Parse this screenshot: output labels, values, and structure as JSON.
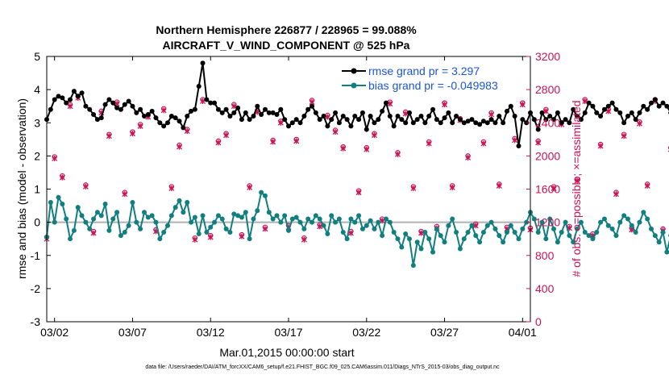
{
  "chart_data": {
    "type": "line",
    "title": "Northern Hemisphere 226877 / 228965 = 99.088%",
    "subtitle": "AIRCRAFT_V_WIND_COMPONENT @ 525 hPa",
    "xlabel": "Mar.01,2015 00:00:00 start",
    "ylabel_left": "rmse and bias (model - observation)",
    "ylabel_right": "# of obs: o=possible; ×=assimilated",
    "footer": "data file: /Users/raeder/DAI/ATM_forcXX/CAM6_setup/f.e21.FHIST_BGC.f09_025.CAM6assim.011/Diags_NTrS_2015-03/obs_diag_output.nc",
    "x_range": [
      0.5,
      31.5
    ],
    "ylim_left": [
      -3,
      5
    ],
    "ylim_right": [
      0,
      3200
    ],
    "x_ticks": [
      {
        "value": 1.0,
        "label": "03/02"
      },
      {
        "value": 6.0,
        "label": "03/07"
      },
      {
        "value": 11.0,
        "label": "03/12"
      },
      {
        "value": 16.0,
        "label": "03/17"
      },
      {
        "value": 21.0,
        "label": "03/22"
      },
      {
        "value": 26.0,
        "label": "03/27"
      },
      {
        "value": 31.0,
        "label": "04/01"
      }
    ],
    "y_ticks_left": [
      "-3",
      "-2",
      "-1",
      "0",
      "1",
      "2",
      "3",
      "4",
      "5"
    ],
    "y_ticks_right": [
      "0",
      "400",
      "800",
      "1200",
      "1600",
      "2000",
      "2400",
      "2800",
      "3200"
    ],
    "colors": {
      "rmse": "#000000",
      "bias": "#117f80",
      "obs": "#cc1155",
      "legend_text": "#1a55d8",
      "zero_line": "#b0b0b0"
    },
    "legend": [
      {
        "name": "rmse",
        "label": "rmse grand pr = 3.297"
      },
      {
        "name": "bias",
        "label": "bias grand pr = -0.049983"
      }
    ],
    "series": [
      {
        "name": "rmse",
        "x0": 0.5,
        "dx": 0.25,
        "values": [
          3.1,
          3.4,
          3.7,
          3.8,
          3.75,
          3.6,
          3.7,
          3.95,
          3.8,
          3.9,
          3.5,
          3.4,
          3.25,
          3.1,
          3.15,
          3.55,
          3.7,
          3.6,
          3.45,
          3.4,
          3.55,
          3.65,
          3.5,
          3.3,
          3.4,
          3.2,
          3.25,
          3.35,
          3.15,
          3.0,
          2.9,
          3.0,
          3.2,
          3.15,
          3.05,
          2.85,
          3.2,
          3.35,
          3.4,
          4.1,
          4.8,
          3.7,
          3.6,
          3.6,
          3.4,
          3.3,
          3.4,
          3.2,
          3.3,
          3.45,
          3.1,
          3.3,
          3.1,
          3.2,
          3.5,
          3.25,
          3.4,
          3.3,
          3.3,
          3.25,
          3.4,
          3.1,
          2.9,
          3.0,
          3.1,
          3.0,
          3.2,
          3.4,
          3.5,
          3.3,
          3.1,
          3.2,
          2.9,
          3.1,
          3.3,
          3.0,
          3.2,
          3.1,
          2.9,
          3.2,
          3.1,
          3.3,
          2.8,
          3.2,
          3.0,
          3.1,
          3.35,
          3.6,
          3.2,
          2.9,
          3.2,
          3.1,
          3.0,
          3.3,
          3.0,
          3.1,
          3.2,
          3.0,
          3.2,
          3.4,
          3.1,
          3.0,
          3.15,
          3.3,
          3.0,
          3.2,
          3.1,
          3.0,
          3.05,
          3.1,
          3.0,
          2.95,
          3.05,
          3.0,
          3.1,
          3.0,
          3.2,
          3.0,
          3.35,
          3.5,
          3.2,
          2.3,
          3.1,
          3.0,
          3.3,
          3.1,
          2.8,
          3.3,
          3.1,
          3.2,
          3.1,
          3.3,
          3.0,
          3.1,
          3.0,
          3.4,
          3.2,
          3.1,
          3.3,
          3.6,
          3.5,
          3.3,
          3.2,
          3.4,
          3.5,
          3.6,
          3.4,
          3.3,
          3.0,
          3.2,
          3.3,
          3.1,
          3.3,
          3.5,
          3.4,
          3.6,
          3.7,
          3.5,
          3.6,
          3.5,
          3.3,
          3.6,
          3.7,
          3.4,
          3.5,
          3.6,
          3.8,
          3.9,
          3.5,
          3.4,
          3.0,
          3.1,
          3.2,
          3.2,
          3.5,
          3.6,
          3.7,
          3.5,
          3.3,
          3.1,
          3.2,
          3.6,
          3.7
        ]
      },
      {
        "name": "bias",
        "x0": 0.5,
        "dx": 0.25,
        "values": [
          -0.45,
          0.6,
          0.0,
          0.75,
          0.55,
          0.1,
          -0.5,
          -0.25,
          0.45,
          0.2,
          0.0,
          -0.2,
          0.1,
          0.3,
          0.2,
          0.55,
          -0.25,
          0.1,
          0.3,
          -0.4,
          -0.3,
          -0.1,
          0.6,
          0.0,
          -0.2,
          0.3,
          0.15,
          0.2,
          0.0,
          -0.5,
          -0.3,
          -0.1,
          0.2,
          0.45,
          0.65,
          0.3,
          0.6,
          0.0,
          0.15,
          -0.35,
          0.2,
          -0.3,
          -0.15,
          0.0,
          0.2,
          0.1,
          -0.2,
          -0.3,
          0.25,
          0.2,
          0.15,
          0.3,
          -0.5,
          0.1,
          0.35,
          0.9,
          0.8,
          0.3,
          0.1,
          0.2,
          0.0,
          0.2,
          -0.25,
          0.1,
          0.15,
          0.0,
          -0.2,
          0.1,
          0.0,
          0.2,
          0.1,
          -0.1,
          -0.35,
          0.2,
          0.0,
          0.1,
          -0.3,
          -0.5,
          0.1,
          0.0,
          0.2,
          -0.2,
          -0.1,
          0.05,
          -0.2,
          0.0,
          -0.4,
          0.1,
          0.0,
          -0.3,
          -0.5,
          -0.75,
          -0.35,
          -0.5,
          -1.3,
          -0.6,
          -0.8,
          -0.3,
          -0.5,
          -0.9,
          -0.2,
          -0.4,
          -0.6,
          -0.1,
          0.1,
          -0.3,
          -0.8,
          -0.5,
          -0.3,
          -0.1,
          -0.4,
          -0.6,
          -0.3,
          -0.1,
          0.0,
          -0.2,
          -0.4,
          -0.6,
          -0.3,
          -0.1,
          -0.3,
          -0.5,
          -0.2,
          0.0,
          0.3,
          0.1,
          -0.3,
          0.0,
          -0.5,
          0.1,
          -0.2,
          -0.6,
          -0.3,
          0.0,
          -0.4,
          -0.6,
          -0.2,
          0.0,
          -0.3,
          -0.4,
          -0.5,
          -0.3,
          0.0,
          0.1,
          -0.1,
          -0.2,
          -0.4,
          0.0,
          0.2,
          0.1,
          -0.1,
          -0.3,
          0.0,
          0.3,
          0.1,
          -0.2,
          -0.4,
          -0.6,
          -0.3,
          -0.9,
          -0.4,
          -0.5,
          -0.6,
          -0.8,
          -0.5,
          -0.7,
          -0.55,
          -0.45,
          -0.55,
          -0.6,
          -0.3,
          -0.1,
          -0.4,
          -0.55,
          -0.6,
          -0.55,
          -0.6
        ]
      },
      {
        "name": "obs_possible",
        "x0": 0.5,
        "dx": 0.5,
        "values": [
          1020,
          1990,
          1760,
          2620,
          2720,
          1650,
          1090,
          2540,
          2260,
          2650,
          1560,
          2290,
          2380,
          2490,
          1110,
          2570,
          1630,
          2130,
          2320,
          1010,
          2680,
          1040,
          2180,
          2270,
          2620,
          1050,
          1640,
          2550,
          1140,
          2190,
          2420,
          1160,
          2200,
          1010,
          2670,
          1170,
          2490,
          2310,
          2110,
          1090,
          1580,
          2100,
          2270,
          1240,
          2650,
          2040,
          2530,
          1630,
          1090,
          2170,
          1150,
          2640,
          1640,
          2450,
          2000,
          1180,
          2170,
          2520,
          1660,
          1140,
          2210,
          2640,
          1130,
          2180,
          2560,
          1630,
          2400,
          1150,
          1720,
          2680,
          1060,
          2140,
          2560,
          1560,
          2260,
          1130,
          2410,
          1660,
          2680,
          1120,
          2100,
          2650,
          1620,
          2060,
          2540,
          1120,
          2690,
          1580,
          2140,
          1010,
          2200,
          1020,
          2400,
          2650,
          1540,
          1630,
          1110,
          2430,
          2130,
          1140,
          2700,
          1140,
          2170,
          1790,
          1670,
          2080,
          1080,
          2640,
          1600,
          2190,
          1620,
          2150,
          1080,
          2700,
          2150,
          2440,
          1090,
          2300,
          2700,
          1140,
          2090,
          1640
        ]
      },
      {
        "name": "obs_assimilated",
        "x0": 0.5,
        "dx": 0.5,
        "values": [
          1000,
          1970,
          1740,
          2600,
          2700,
          1630,
          1070,
          2520,
          2240,
          2630,
          1540,
          2270,
          2360,
          2470,
          1090,
          2550,
          1610,
          2110,
          2300,
          990,
          2660,
          1020,
          2160,
          2250,
          2600,
          1030,
          1620,
          2530,
          1120,
          2170,
          2400,
          1140,
          2180,
          990,
          2650,
          1150,
          2470,
          2290,
          2090,
          1070,
          1560,
          2080,
          2250,
          1220,
          2630,
          2020,
          2510,
          1610,
          1070,
          2150,
          1130,
          2620,
          1620,
          2430,
          1980,
          1160,
          2150,
          2500,
          1640,
          1120,
          2190,
          2620,
          1110,
          2160,
          2540,
          1610,
          2380,
          1130,
          1700,
          2660,
          1040,
          2120,
          2540,
          1540,
          2240,
          1110,
          2390,
          1640,
          2660,
          1100,
          2080,
          2630,
          1600,
          2040,
          2520,
          1100,
          2670,
          1560,
          2120,
          990,
          2180,
          1000,
          2380,
          2630,
          1520,
          1610,
          1090,
          2410,
          2110,
          1120,
          2680,
          1120,
          2150,
          1770,
          1650,
          2060,
          1060,
          2620,
          1580,
          2170,
          1600,
          2130,
          1060,
          2680,
          2130,
          2420,
          1070,
          2280,
          2680,
          1120,
          2070,
          1620
        ]
      }
    ]
  }
}
